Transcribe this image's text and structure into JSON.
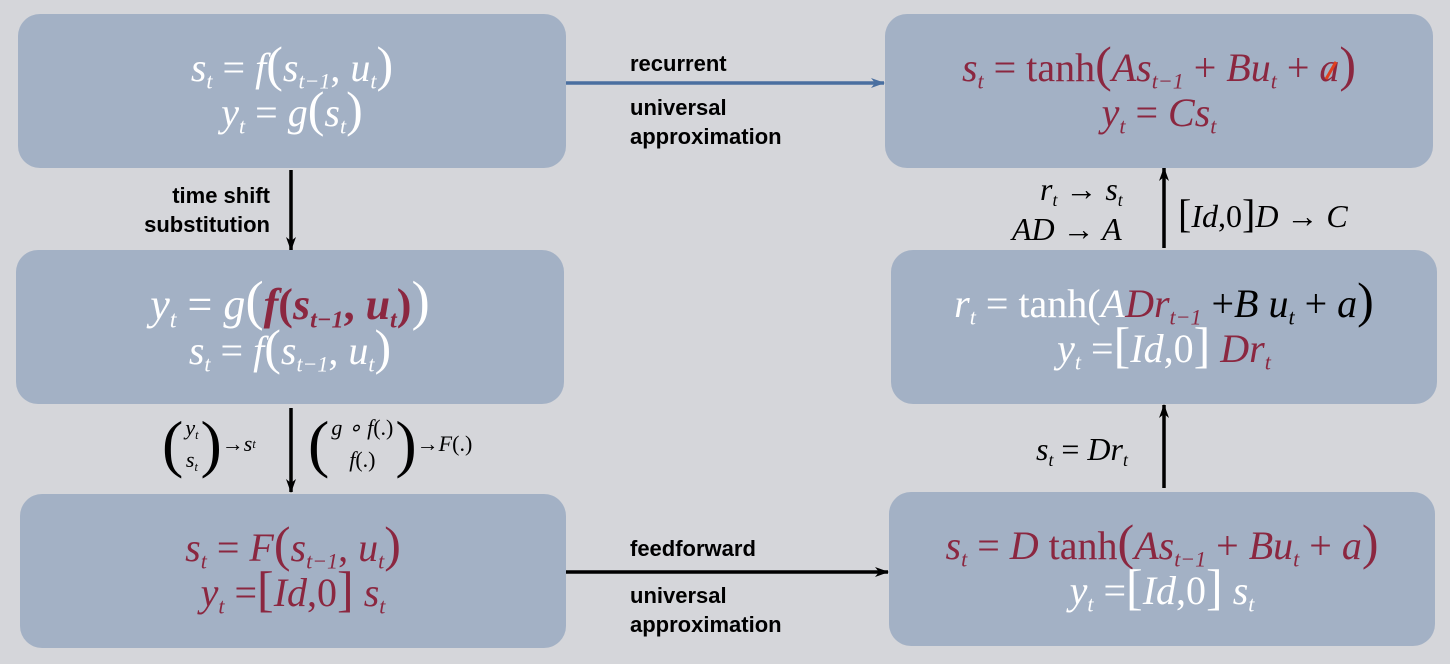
{
  "boxes": {
    "top_left": {
      "line1": [
        "s",
        "t",
        " = ",
        "f",
        "(",
        "s",
        "t−1",
        ", ",
        "u",
        "t",
        ")"
      ],
      "line2": [
        "y",
        "t",
        " = ",
        "g",
        "(",
        "s",
        "t",
        ")"
      ]
    },
    "mid_left": {
      "line1": [
        "y",
        "t",
        " = ",
        "g",
        "(",
        "f",
        "(",
        "s",
        "t−1",
        ", ",
        "u",
        "t",
        ")",
        ")"
      ],
      "line2": [
        "s",
        "t",
        " = ",
        "f",
        "(",
        "s",
        "t−1",
        ", ",
        "u",
        "t",
        ")"
      ]
    },
    "bottom_left": {
      "line1": [
        "s",
        "t",
        " = ",
        "F",
        "(",
        "s",
        "t−1",
        ", ",
        "u",
        "t",
        ")"
      ],
      "line2": [
        "y",
        "t",
        " =",
        "[",
        "Id",
        ",0",
        "]",
        " s",
        "t"
      ]
    },
    "top_right": {
      "line1": [
        "s",
        "t",
        " = ",
        "tanh",
        "(",
        "As",
        "t−1",
        " + ",
        "Bu",
        "t",
        " + ",
        "a",
        ")"
      ],
      "line2": [
        "y",
        "t",
        " = ",
        "Cs",
        "t"
      ]
    },
    "mid_right": {
      "line1": [
        "r",
        "t",
        " = ",
        "tanh(",
        "A",
        "Dr",
        "t−1",
        " +",
        "B",
        " u",
        "t",
        " + ",
        "a",
        ")"
      ],
      "line2": [
        "y",
        "t",
        " =",
        "[",
        "Id",
        ",0",
        "]",
        " Dr",
        "t"
      ]
    },
    "bottom_right": {
      "line1": [
        "s",
        "t",
        " = ",
        "D",
        " tanh",
        "(",
        "As",
        "t−1",
        " + ",
        "Bu",
        "t",
        " + ",
        "a",
        ")"
      ],
      "line2": [
        "y",
        "t",
        " =",
        "[",
        "Id",
        ",0",
        "]",
        " s",
        "t"
      ]
    }
  },
  "labels": {
    "recurrent": "recurrent",
    "universal_approx_top": [
      "universal",
      "approximation"
    ],
    "time_shift": [
      "time shift",
      "substitution"
    ],
    "feedforward": "feedforward",
    "universal_approx_bottom": [
      "universal",
      "approximation"
    ],
    "rt_to_st": [
      "r",
      "t",
      " → ",
      "s",
      "t"
    ],
    "ad_to_a": "AD → A",
    "idd_to_c": [
      "[",
      "Id",
      ",0",
      "]",
      "D → C"
    ],
    "st_dr": [
      "s",
      "t",
      " = ",
      "Dr",
      "t"
    ],
    "vector_left": [
      "y",
      "t",
      "s",
      "t",
      " → ",
      "s",
      "t"
    ],
    "vector_right": [
      "g ∘ f",
      "(.)",
      "f",
      "(.)",
      " → ",
      "F",
      "(.)"
    ]
  },
  "colors": {
    "background": "#d5d6da",
    "box": "#a3b1c5",
    "red": "#8b2740",
    "white": "#ffffff",
    "blue_arrow": "#4a6fa0",
    "strike": "#e0401e"
  }
}
